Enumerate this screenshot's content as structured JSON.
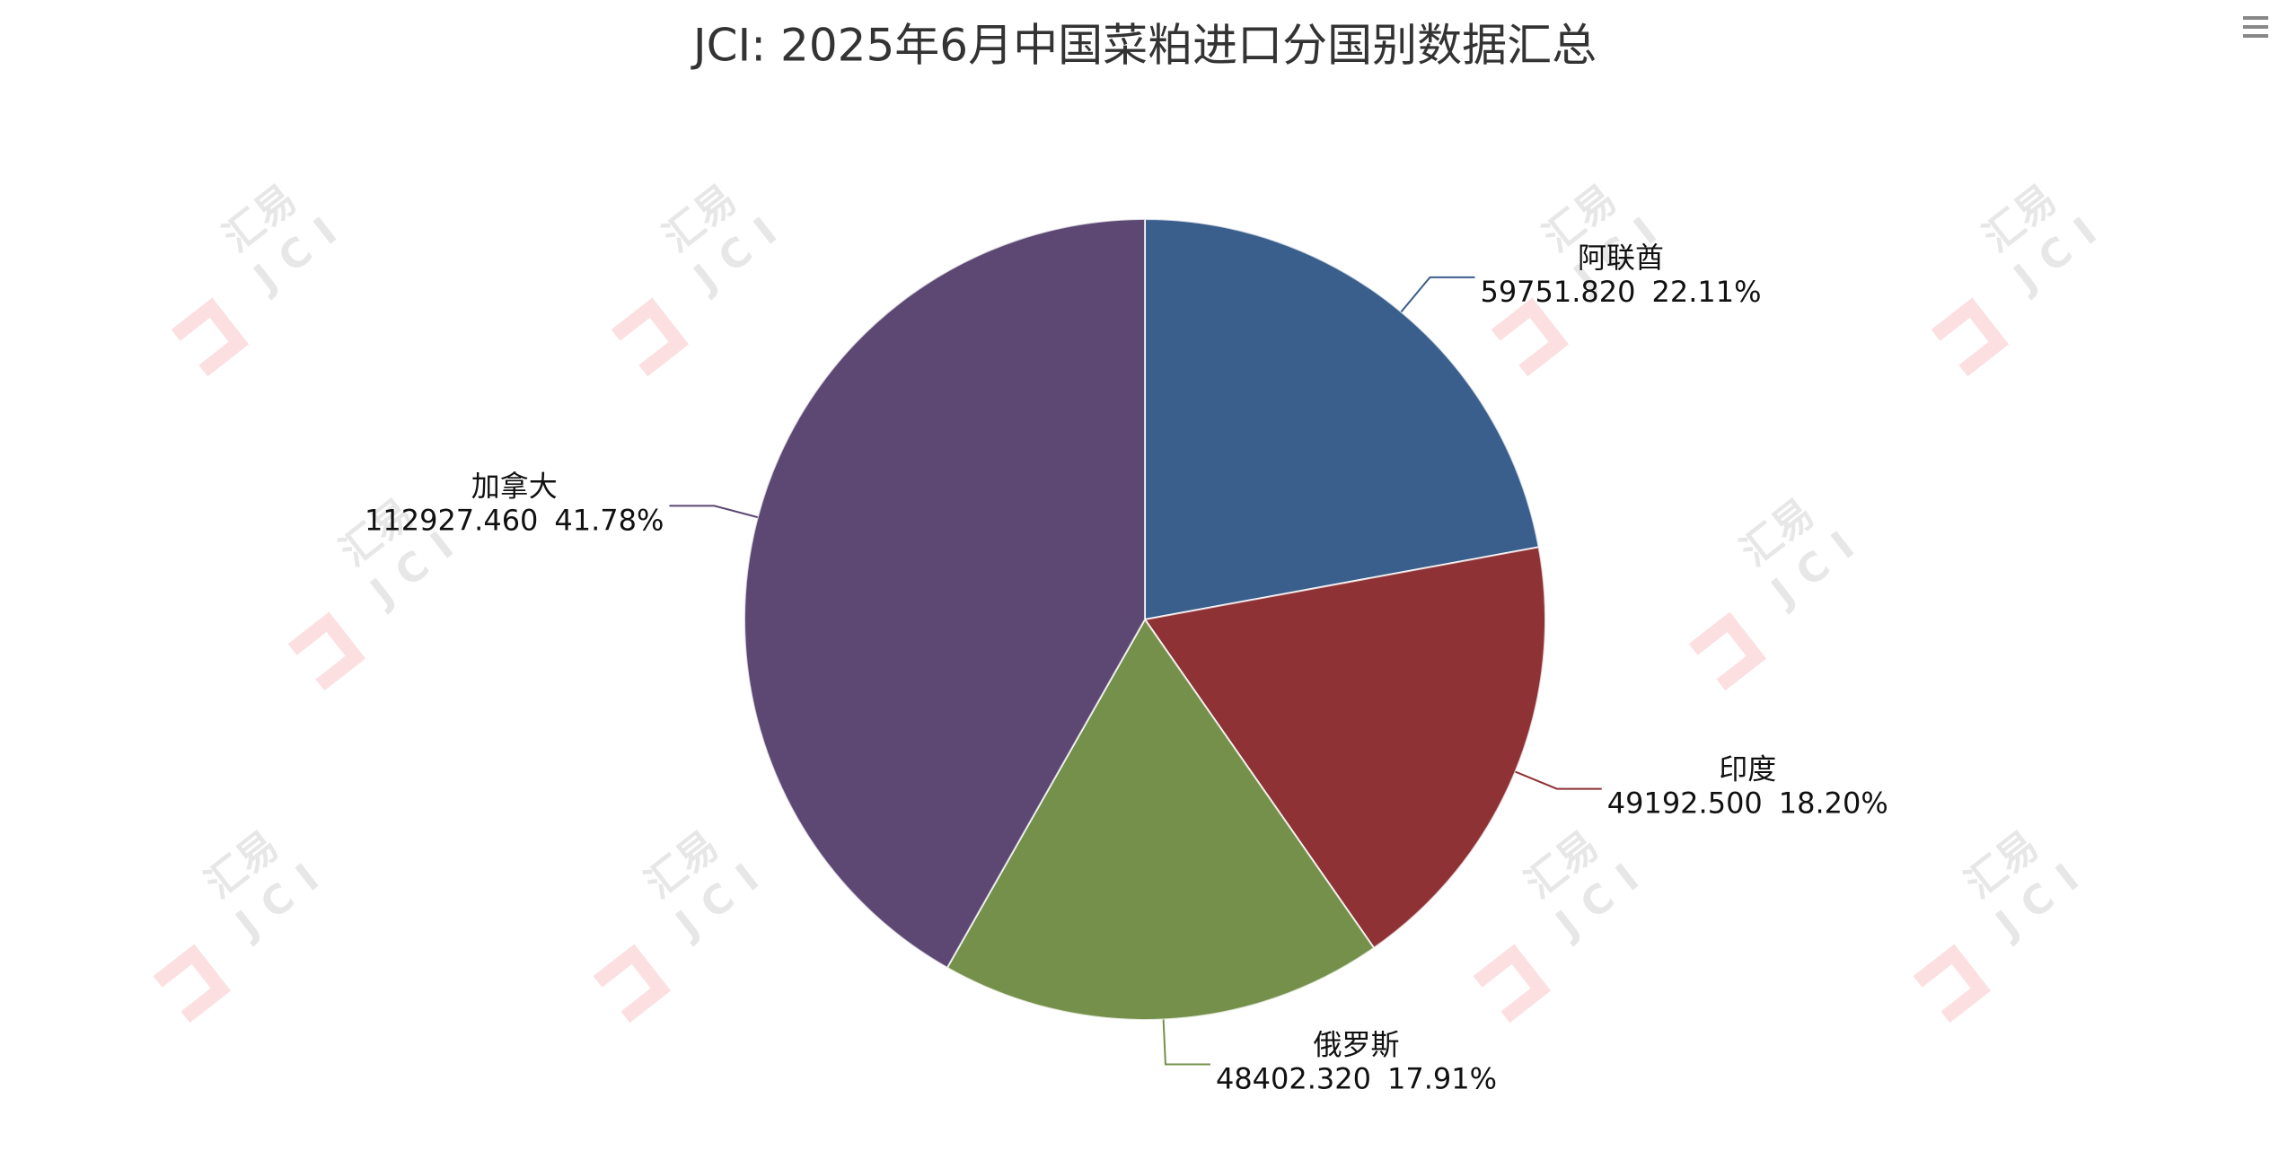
{
  "chart_data": {
    "type": "pie",
    "title": "JCI: 2025年6月中国菜粕进口分国别数据汇总",
    "categories": [
      "阿联酋",
      "印度",
      "俄罗斯",
      "加拿大"
    ],
    "values": [
      59751.82,
      49192.5,
      48402.32,
      112927.46
    ],
    "value_labels": [
      "59751.820",
      "49192.500",
      "48402.320",
      "112927.460"
    ],
    "percent_labels": [
      "22.11%",
      "18.20%",
      "17.91%",
      "41.78%"
    ],
    "colors": [
      "#3b5f8c",
      "#8e3236",
      "#74904a",
      "#5c4872"
    ],
    "watermark": {
      "name": "汇易",
      "brand": "JCI"
    }
  }
}
